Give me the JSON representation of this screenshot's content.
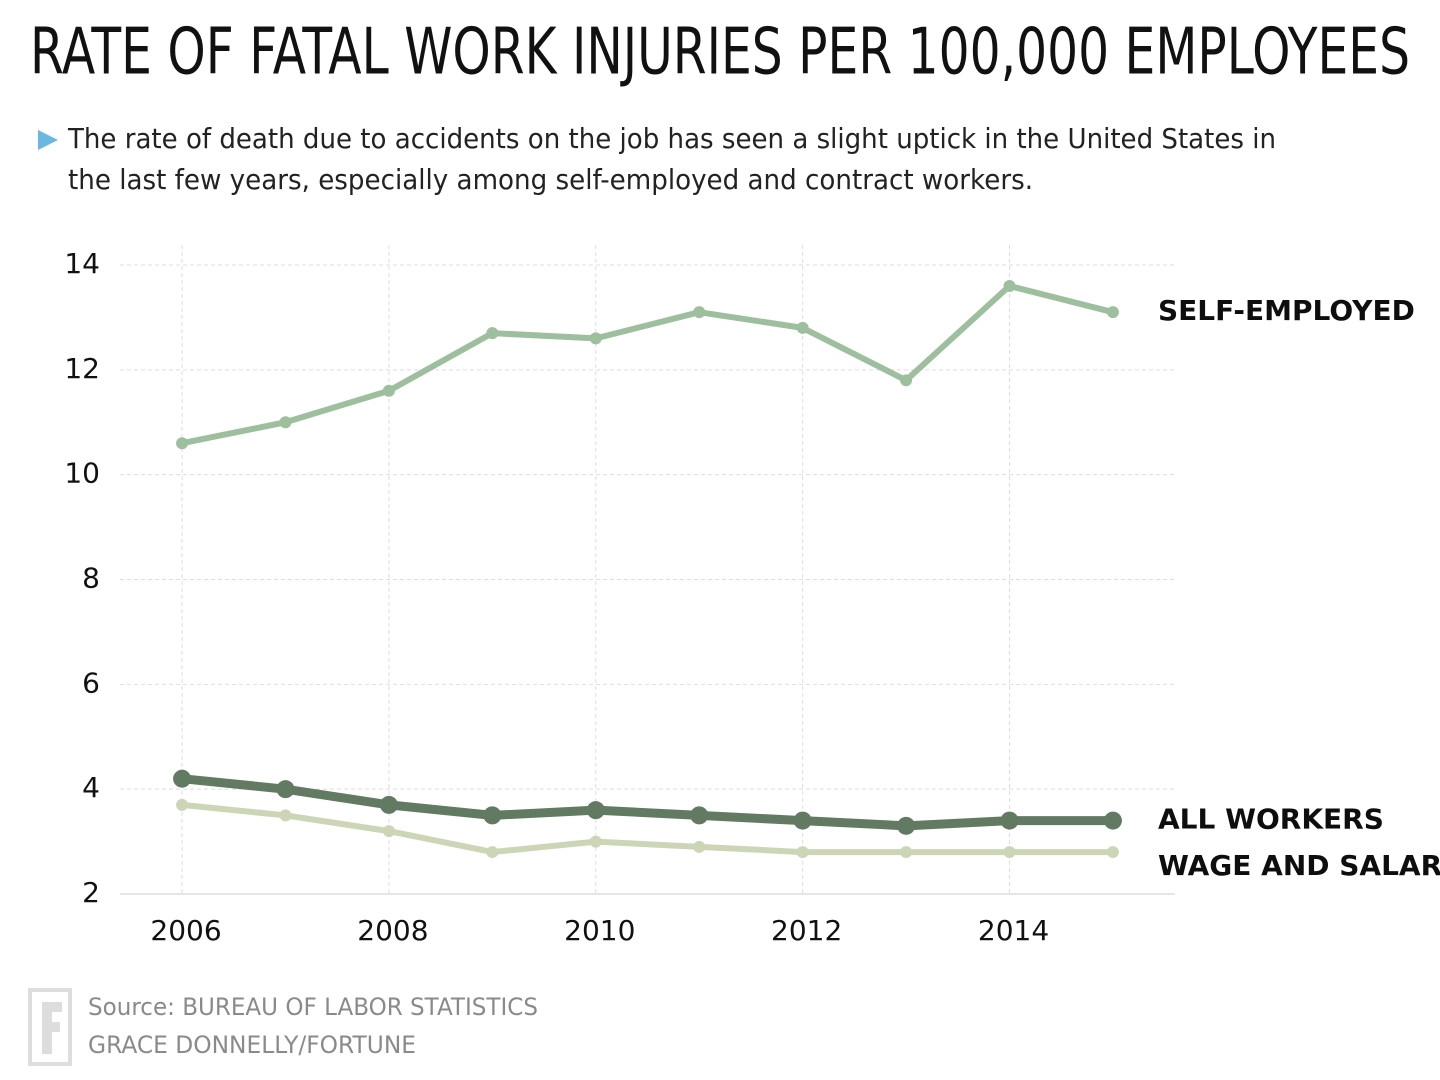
{
  "chart_data": {
    "type": "line",
    "title": "RATE OF FATAL WORK INJURIES PER 100,000 EMPLOYEES",
    "subtitle": [
      "The rate of death due to accidents on the job has seen a slight uptick in the United States in",
      "the last few years, especially among self-employed and contract workers."
    ],
    "x": [
      2006,
      2007,
      2008,
      2009,
      2010,
      2011,
      2012,
      2013,
      2014,
      2015
    ],
    "series": [
      {
        "name": "SELF-EMPLOYED",
        "color": "#9dbf9e",
        "values": [
          10.6,
          11.0,
          11.6,
          12.7,
          12.6,
          13.1,
          12.8,
          11.8,
          13.6,
          13.1
        ]
      },
      {
        "name": "ALL WORKERS",
        "color": "#627a62",
        "values": [
          4.2,
          4.0,
          3.7,
          3.5,
          3.6,
          3.5,
          3.4,
          3.3,
          3.4,
          3.4
        ]
      },
      {
        "name": "WAGE AND SALARY",
        "color": "#ccd5b5",
        "values": [
          3.7,
          3.5,
          3.2,
          2.8,
          3.0,
          2.9,
          2.8,
          2.8,
          2.8,
          2.8
        ]
      }
    ],
    "xlim": [
      2005.4,
      2015.6
    ],
    "xticks": [
      2006,
      2008,
      2010,
      2012,
      2014
    ],
    "ylim": [
      2,
      14
    ],
    "yticks": [
      2,
      4,
      6,
      8,
      10,
      12,
      14
    ],
    "grid": true,
    "source": [
      "Source: BUREAU OF LABOR STATISTICS",
      "GRACE DONNELLY/FORTUNE"
    ]
  }
}
